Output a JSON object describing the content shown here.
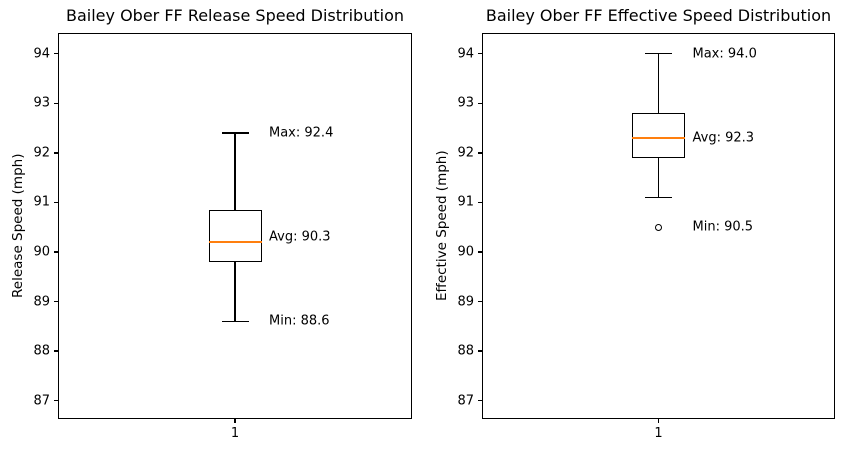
{
  "figure": {
    "background": "#ffffff",
    "text_color": "#000000"
  },
  "chart_data": [
    {
      "type": "box",
      "title": "Bailey Ober FF Release Speed Distribution",
      "ylabel": "Release Speed (mph)",
      "xlabel": "",
      "x_tick_label": "1",
      "yticks": [
        87,
        88,
        89,
        90,
        91,
        92,
        93,
        94
      ],
      "ylim": [
        86.65,
        94.4
      ],
      "grid": false,
      "legend": null,
      "box": {
        "whisker_low": 88.6,
        "q1": 89.8,
        "median": 90.2,
        "q3": 90.85,
        "whisker_high": 92.4,
        "outliers": []
      },
      "annotations": [
        {
          "label": "Max: 92.4",
          "value": 92.4
        },
        {
          "label": "Avg: 90.3",
          "value": 90.3
        },
        {
          "label": "Min: 88.6",
          "value": 88.6
        }
      ],
      "stats": {
        "max": 92.4,
        "avg": 90.3,
        "min": 88.6
      },
      "line_color": "#000000",
      "median_color": "#ff7f0e"
    },
    {
      "type": "box",
      "title": "Bailey Ober FF Effective Speed Distribution",
      "ylabel": "Effective Speed (mph)",
      "xlabel": "",
      "x_tick_label": "1",
      "yticks": [
        87,
        88,
        89,
        90,
        91,
        92,
        93,
        94
      ],
      "ylim": [
        86.65,
        94.4
      ],
      "grid": false,
      "legend": null,
      "box": {
        "whisker_low": 91.1,
        "q1": 91.9,
        "median": 92.3,
        "q3": 92.8,
        "whisker_high": 94.0,
        "outliers": [
          90.5
        ]
      },
      "annotations": [
        {
          "label": "Max: 94.0",
          "value": 94.0
        },
        {
          "label": "Avg: 92.3",
          "value": 92.3
        },
        {
          "label": "Min: 90.5",
          "value": 90.5
        }
      ],
      "stats": {
        "max": 94.0,
        "avg": 92.3,
        "min": 90.5
      },
      "line_color": "#000000",
      "median_color": "#ff7f0e"
    }
  ]
}
